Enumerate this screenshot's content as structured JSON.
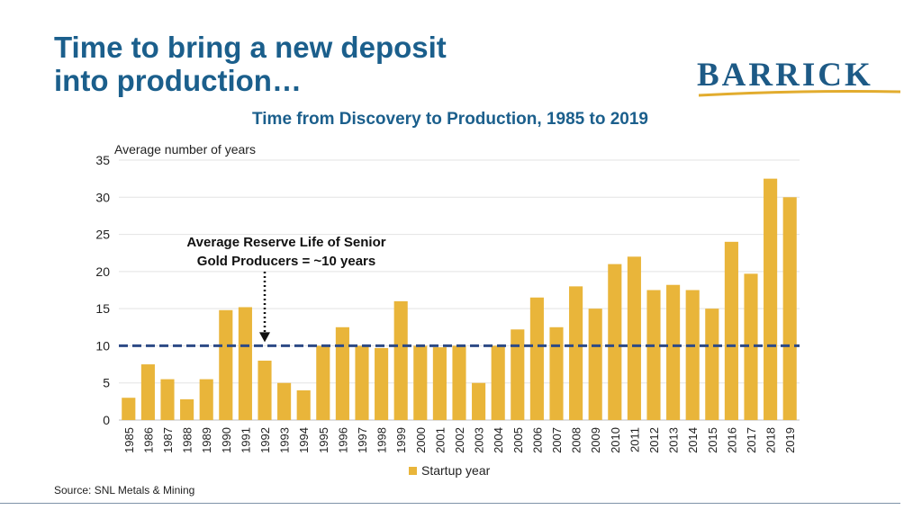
{
  "slide": {
    "title_line1": "Time to bring a new deposit",
    "title_line2": "into production…",
    "logo_text": "BARRICK",
    "source": "Source: SNL Metals & Mining"
  },
  "colors": {
    "title": "#1b5f8c",
    "bar": "#e9b53a",
    "reference_line": "#2d4a85",
    "logo": "#1d5a86",
    "logo_accent": "#e2ac2e"
  },
  "chart_data": {
    "type": "bar",
    "title": "Time from Discovery to Production, 1985 to 2019",
    "ylabel": "Average number of years",
    "xlabel": "",
    "ylim": [
      0,
      35
    ],
    "yticks": [
      0,
      5,
      10,
      15,
      20,
      25,
      30,
      35
    ],
    "grid": true,
    "legend": {
      "position": "bottom",
      "entries": [
        "Startup year"
      ]
    },
    "categories": [
      "1985",
      "1986",
      "1987",
      "1988",
      "1989",
      "1990",
      "1991",
      "1992",
      "1993",
      "1994",
      "1995",
      "1996",
      "1997",
      "1998",
      "1999",
      "2000",
      "2001",
      "2002",
      "2003",
      "2004",
      "2005",
      "2006",
      "2007",
      "2008",
      "2009",
      "2010",
      "2011",
      "2012",
      "2013",
      "2014",
      "2015",
      "2016",
      "2017",
      "2018",
      "2019"
    ],
    "series": [
      {
        "name": "Startup year",
        "values": [
          3,
          7.5,
          5.5,
          2.8,
          5.5,
          14.8,
          15.2,
          8,
          5,
          4,
          10,
          12.5,
          10,
          9.7,
          16,
          10,
          9.8,
          10,
          5,
          10,
          12.2,
          16.5,
          12.5,
          18,
          15,
          21,
          22,
          17.5,
          18.2,
          17.5,
          15,
          24,
          19.7,
          32.5,
          30
        ]
      }
    ],
    "reference_line": {
      "value": 10,
      "style": "dashed"
    },
    "annotations": [
      {
        "line1": "Average Reserve Life of Senior",
        "line2": "Gold Producers = ~10 years",
        "arrow_to_category": "1992",
        "arrow_to_value": 10
      }
    ]
  }
}
